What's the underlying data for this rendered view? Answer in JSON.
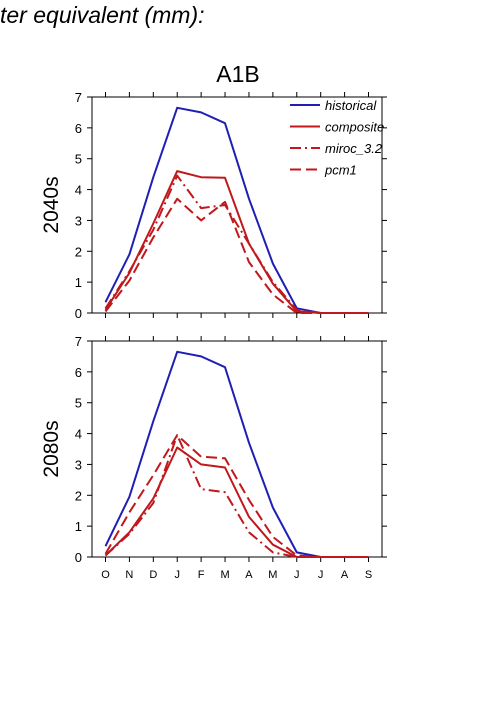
{
  "page_title": "ter equivalent (mm):",
  "scenario": "A1B",
  "chart_data": [
    {
      "type": "line",
      "panel_label": "2040s",
      "categories": [
        "O",
        "N",
        "D",
        "J",
        "F",
        "M",
        "A",
        "M",
        "J",
        "J",
        "A",
        "S"
      ],
      "ylim": [
        0,
        7
      ],
      "yticks": [
        0,
        1,
        2,
        3,
        4,
        5,
        6,
        7
      ],
      "grid": false,
      "legend_position": "top-right",
      "series": [
        {
          "name": "historical",
          "color": "#1f1fb4",
          "dash": "solid",
          "values": [
            0.35,
            1.9,
            4.4,
            6.65,
            6.5,
            6.15,
            3.7,
            1.6,
            0.15,
            0.0,
            0.0,
            0.0
          ]
        },
        {
          "name": "composite",
          "color": "#c0181c",
          "dash": "solid",
          "values": [
            0.1,
            1.3,
            2.9,
            4.6,
            4.4,
            4.38,
            2.25,
            0.95,
            0.05,
            0.0,
            0.0,
            0.0
          ]
        },
        {
          "name": "miroc_3.2",
          "color": "#c0181c",
          "dash": "dashdot",
          "values": [
            0.15,
            1.35,
            2.7,
            4.45,
            3.4,
            3.5,
            2.25,
            1.0,
            0.1,
            0.0,
            0.0,
            0.0
          ]
        },
        {
          "name": "pcm1",
          "color": "#c0181c",
          "dash": "dash",
          "values": [
            0.05,
            1.05,
            2.45,
            3.7,
            3.0,
            3.6,
            1.65,
            0.6,
            0.0,
            0.0,
            0.0,
            0.0
          ]
        }
      ]
    },
    {
      "type": "line",
      "panel_label": "2080s",
      "categories": [
        "O",
        "N",
        "D",
        "J",
        "F",
        "M",
        "A",
        "M",
        "J",
        "J",
        "A",
        "S"
      ],
      "ylim": [
        0,
        7
      ],
      "yticks": [
        0,
        1,
        2,
        3,
        4,
        5,
        6,
        7
      ],
      "grid": false,
      "series": [
        {
          "name": "historical",
          "color": "#1f1fb4",
          "dash": "solid",
          "values": [
            0.35,
            1.95,
            4.4,
            6.65,
            6.5,
            6.15,
            3.7,
            1.6,
            0.15,
            0.0,
            0.0,
            0.0
          ]
        },
        {
          "name": "composite",
          "color": "#c0181c",
          "dash": "solid",
          "values": [
            0.05,
            0.8,
            1.9,
            3.55,
            3.0,
            2.9,
            1.3,
            0.4,
            0.0,
            0.0,
            0.0,
            0.0
          ]
        },
        {
          "name": "miroc_3.2",
          "color": "#c0181c",
          "dash": "dashdot",
          "values": [
            0.05,
            0.75,
            1.75,
            3.95,
            2.2,
            2.1,
            0.8,
            0.15,
            0.0,
            0.0,
            0.0,
            0.0
          ]
        },
        {
          "name": "pcm1",
          "color": "#c0181c",
          "dash": "dash",
          "values": [
            0.1,
            1.45,
            2.65,
            3.95,
            3.25,
            3.2,
            1.85,
            0.65,
            0.05,
            0.0,
            0.0,
            0.0
          ]
        }
      ]
    }
  ]
}
